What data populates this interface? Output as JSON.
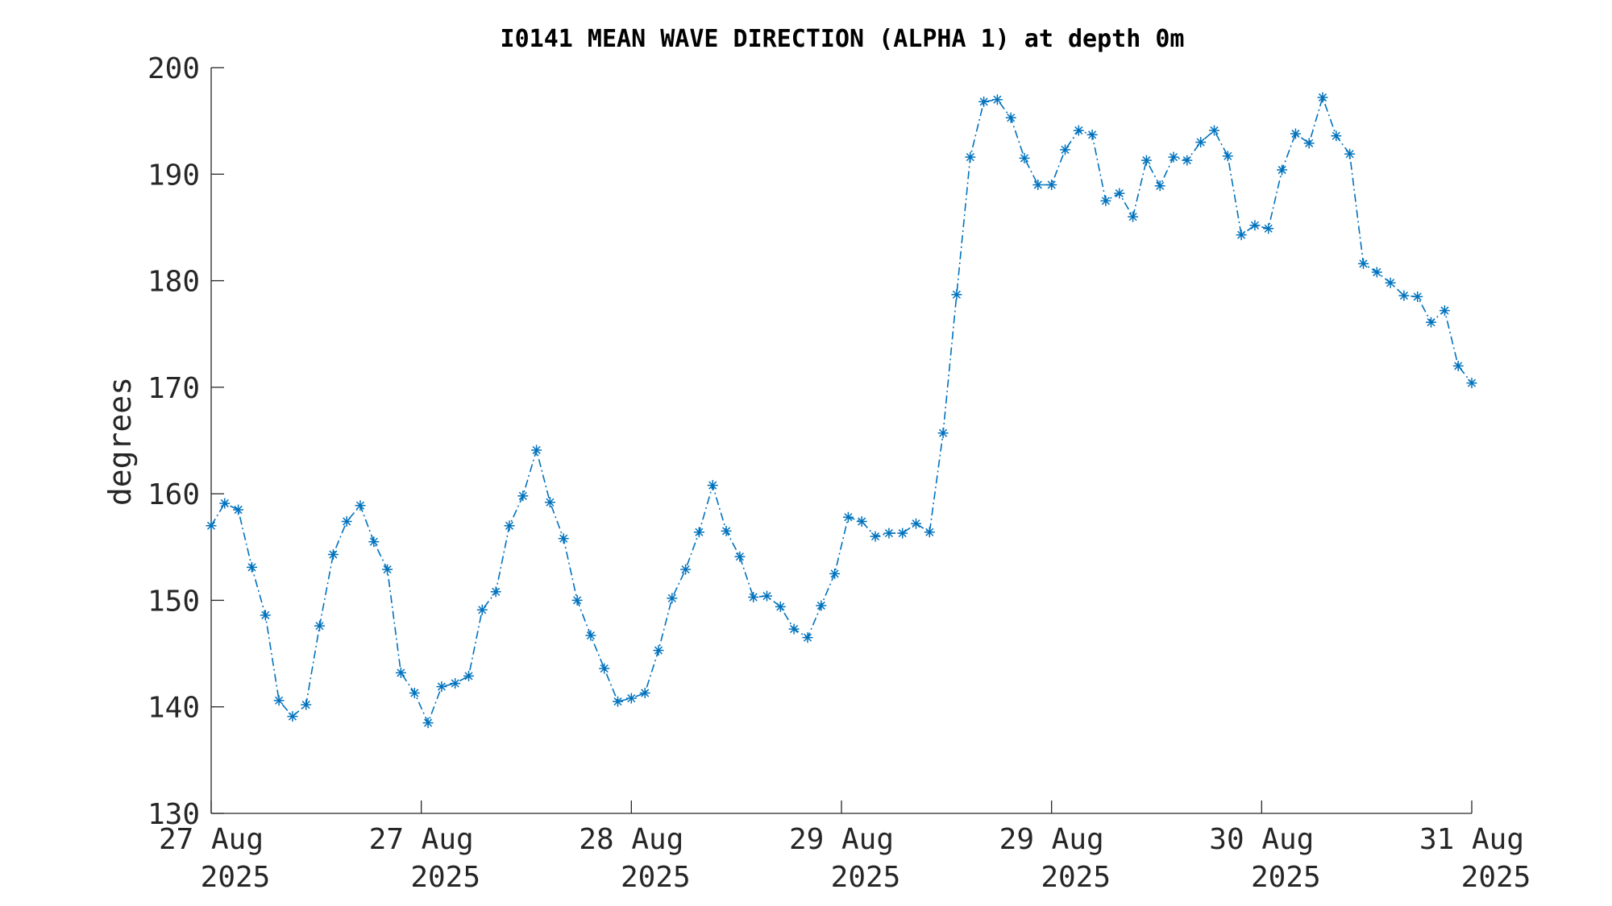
{
  "chart_data": {
    "type": "line",
    "title": "I0141 MEAN WAVE DIRECTION (ALPHA 1) at depth 0m",
    "xlabel": "",
    "ylabel": "degrees",
    "ylim": [
      130,
      200
    ],
    "yticks": [
      130,
      140,
      150,
      160,
      170,
      180,
      190,
      200
    ],
    "ytick_labels": [
      "130",
      "140",
      "150",
      "160",
      "170",
      "180",
      "190",
      "200"
    ],
    "xticks": [
      {
        "line1": "27 Aug",
        "line2": "2025"
      },
      {
        "line1": "27 Aug",
        "line2": "2025"
      },
      {
        "line1": "28 Aug",
        "line2": "2025"
      },
      {
        "line1": "29 Aug",
        "line2": "2025"
      },
      {
        "line1": "29 Aug",
        "line2": "2025"
      },
      {
        "line1": "30 Aug",
        "line2": "2025"
      },
      {
        "line1": "31 Aug",
        "line2": "2025"
      }
    ],
    "grid": false,
    "series": [
      {
        "color": "#0072BD",
        "line_style": "dash-dot",
        "marker": "asterisk",
        "values": [
          157.0,
          159.1,
          158.5,
          153.1,
          148.6,
          140.6,
          139.1,
          140.2,
          147.6,
          154.3,
          157.4,
          158.9,
          155.5,
          152.9,
          143.2,
          141.3,
          138.5,
          141.9,
          142.2,
          142.9,
          149.1,
          150.8,
          157.0,
          159.8,
          164.1,
          159.2,
          155.8,
          150.0,
          146.7,
          143.6,
          140.5,
          140.8,
          141.3,
          145.3,
          150.2,
          152.9,
          156.4,
          160.8,
          156.5,
          154.1,
          150.3,
          150.4,
          149.4,
          147.3,
          146.5,
          149.5,
          152.5,
          157.8,
          157.4,
          156.0,
          156.3,
          156.3,
          157.2,
          156.4,
          165.7,
          178.7,
          191.6,
          196.8,
          197.0,
          195.3,
          191.5,
          189.0,
          189.0,
          192.3,
          194.1,
          193.7,
          187.5,
          188.2,
          186.0,
          191.3,
          188.9,
          191.6,
          191.3,
          193.0,
          194.1,
          191.7,
          184.3,
          185.2,
          184.9,
          190.4,
          193.8,
          192.9,
          197.2,
          193.6,
          191.9,
          181.6,
          180.8,
          179.8,
          178.6,
          178.5,
          176.1,
          177.2,
          172.0,
          170.4
        ]
      }
    ]
  }
}
